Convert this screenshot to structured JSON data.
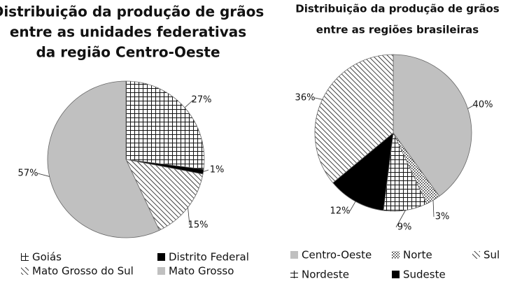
{
  "chart_data": [
    {
      "type": "pie",
      "title": [
        "Distribuição da produção de grãos",
        "entre as unidades federativas",
        "da região Centro-Oeste"
      ],
      "categories": [
        "Goiás",
        "Distrito Federal",
        "Mato Grosso do Sul",
        "Mato Grosso"
      ],
      "values": [
        27,
        1,
        15,
        57
      ],
      "value_labels": [
        "27%",
        "1%",
        "15%",
        "57%"
      ],
      "patterns": [
        "grid",
        "black",
        "diagonal",
        "gray"
      ]
    },
    {
      "type": "pie",
      "title": [
        "Distribuição da produção de grãos",
        "entre as regiões brasileiras"
      ],
      "categories": [
        "Centro-Oeste",
        "Norte",
        "Nordeste",
        "Sudeste",
        "Sul"
      ],
      "values": [
        40,
        3,
        9,
        12,
        36
      ],
      "value_labels": [
        "40%",
        "3%",
        "9%",
        "12%",
        "36%"
      ],
      "patterns": [
        "gray",
        "dots",
        "grid",
        "black",
        "diagonal"
      ]
    }
  ]
}
